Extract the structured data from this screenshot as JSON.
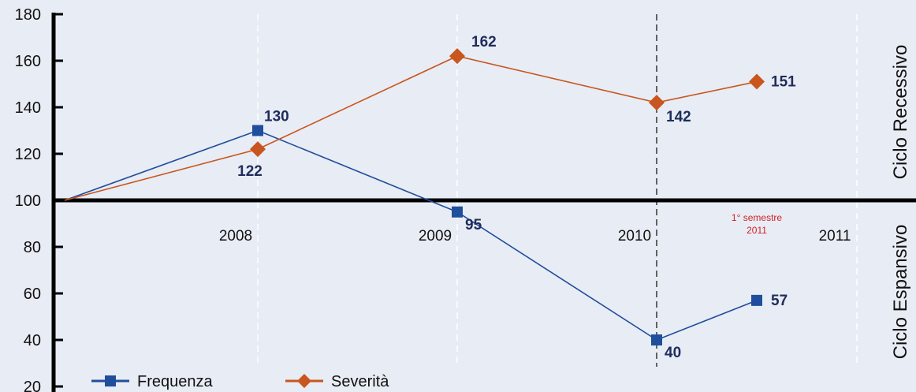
{
  "chart_data": {
    "type": "line",
    "title": "",
    "xlabel": "",
    "ylabel": "",
    "ylim": [
      20,
      180
    ],
    "y_ticks": [
      20,
      40,
      60,
      80,
      100,
      120,
      140,
      160,
      180
    ],
    "baseline": 100,
    "x_positions": [
      "2007",
      "2008",
      "2009",
      "2010",
      "1° semestre 2011"
    ],
    "x_tick_labels": [
      "2008",
      "2009",
      "2010",
      "2011"
    ],
    "annotation": {
      "lines": [
        "1° semestre",
        "2011"
      ],
      "color": "#d0202a"
    },
    "zones": {
      "upper": "Ciclo Recessivo",
      "lower": "Ciclo Espansivo"
    },
    "series": [
      {
        "name": "Frequenza",
        "color": "#1f4e9c",
        "marker": "square",
        "values": [
          100,
          130,
          95,
          40,
          57
        ],
        "labels": [
          null,
          "130",
          "95",
          "40",
          "57"
        ]
      },
      {
        "name": "Severità",
        "color": "#c8561e",
        "marker": "diamond",
        "values": [
          100,
          122,
          162,
          142,
          151
        ],
        "labels": [
          null,
          "122",
          "162",
          "142",
          "151"
        ]
      }
    ],
    "legend_position": "bottom-left",
    "grid": "vertical-dashed"
  }
}
